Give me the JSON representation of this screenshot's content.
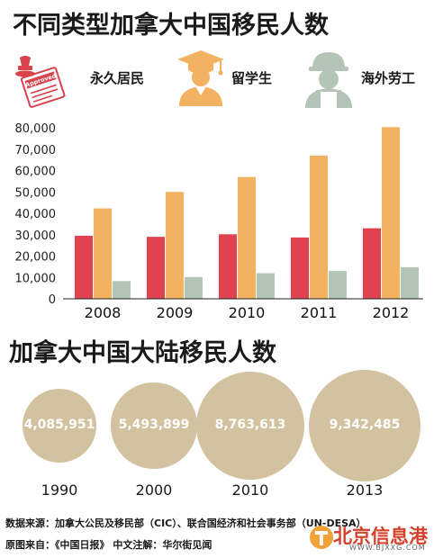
{
  "title": "不同类型加拿大中国移民人数",
  "legend": [
    {
      "label": "永久居民",
      "icon": "stamp-document-icon",
      "color": "#e0424f"
    },
    {
      "label": "留学生",
      "icon": "graduate-icon",
      "color": "#f3b261"
    },
    {
      "label": "海外劳工",
      "icon": "worker-helmet-icon",
      "color": "#b4c5b7"
    }
  ],
  "stamp_text": "Approved",
  "chart_data": [
    {
      "type": "bar",
      "title": "不同类型加拿大中国移民人数",
      "categories": [
        "2008",
        "2009",
        "2010",
        "2011",
        "2012"
      ],
      "series": [
        {
          "name": "永久居民",
          "values": [
            29500,
            29000,
            30200,
            28700,
            33000
          ],
          "color": "#e0424f"
        },
        {
          "name": "留学生",
          "values": [
            42300,
            50000,
            57000,
            67000,
            80300
          ],
          "color": "#f3b261"
        },
        {
          "name": "海外劳工",
          "values": [
            8300,
            10200,
            12000,
            13000,
            14800
          ],
          "color": "#b4c5b7"
        }
      ],
      "ylim": [
        0,
        80000
      ],
      "yticks": [
        "0",
        "10,000",
        "20,000",
        "30,000",
        "40,000",
        "50,000",
        "60,000",
        "70,000",
        "80,000"
      ],
      "grid": false,
      "legend": "top"
    },
    {
      "type": "bubble",
      "title": "加拿大中国大陆移民人数",
      "categories": [
        "1990",
        "2000",
        "2010",
        "2013"
      ],
      "values": [
        4085951,
        5493899,
        8763613,
        9342485
      ],
      "labels": [
        "4,085,951",
        "5,493,899",
        "8,763,613",
        "9,342,485"
      ],
      "color": "#d2c29f"
    }
  ],
  "title2": "加拿大中国大陆移民人数",
  "source_line1": "数据来源：加拿大公民及移民部（CIC）、联合国经济和社会事务部（UN-DESA）",
  "source_line2": "原图来自：《中国日报》 中文注解：华尔街见闻",
  "watermark_text": "北京信息港",
  "watermark_url": "WWW.BJXXG.COM"
}
